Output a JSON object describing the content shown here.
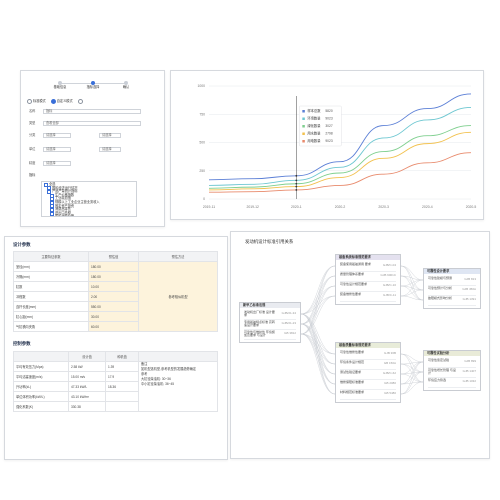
{
  "form_panel": {
    "steps": [
      {
        "label": "基础信息"
      },
      {
        "label": "指标选择"
      },
      {
        "label": "确认"
      }
    ],
    "radios": [
      {
        "label": "标准模式",
        "checked": false
      },
      {
        "label": "自定义模式",
        "checked": true
      },
      {
        "label": "",
        "checked": false
      }
    ],
    "fields": [
      {
        "label": "名称",
        "value": "指标"
      },
      {
        "label": "类型",
        "value": "查看全部"
      },
      {
        "label": "分类",
        "value": "请选择"
      },
      {
        "label": "",
        "value": "请选择"
      },
      {
        "label": "单位",
        "value": "请选择"
      },
      {
        "label": "",
        "value": "请选择"
      },
      {
        "label": "精度",
        "value": "请选择"
      }
    ],
    "tree_label": "指标",
    "tree": [
      "全选",
      "国民经济运行情况",
      "产品产量统计指标",
      "生产价格指数",
      "工业增加值",
      "规模以上工业企业主营业务收入",
      "固定资产投资",
      "消费品零售",
      "进出口总额",
      "居民消费价格",
      "其他"
    ]
  },
  "chart_data": {
    "type": "line",
    "x": [
      "2019-11",
      "2019-12",
      "2020-1",
      "2020-2",
      "2020-3",
      "2020-4",
      "2020-5"
    ],
    "ylim": [
      0,
      1000
    ],
    "yticks": [
      0,
      250,
      500,
      750,
      1000
    ],
    "series": [
      {
        "name": "样本总数",
        "value_label": "5820",
        "color": "#5b7fd6",
        "values": [
          170,
          180,
          205,
          330,
          650,
          800,
          930
        ]
      },
      {
        "name": "环境数量",
        "value_label": "9023",
        "color": "#6ec7d1",
        "values": [
          120,
          130,
          165,
          280,
          540,
          700,
          810
        ]
      },
      {
        "name": "绿化数量",
        "value_label": "3027",
        "color": "#7fcf8f",
        "values": [
          95,
          105,
          135,
          230,
          420,
          560,
          650
        ]
      },
      {
        "name": "用水数量",
        "value_label": "2798",
        "color": "#f2c14e",
        "values": [
          80,
          90,
          110,
          190,
          360,
          490,
          590
        ]
      },
      {
        "name": "用电数量",
        "value_label": "9023",
        "color": "#e88a6c",
        "values": [
          60,
          65,
          80,
          120,
          220,
          320,
          410
        ]
      }
    ],
    "tooltip_at": "2020-1"
  },
  "params_panel": {
    "design_title": "设计参数",
    "design_headers": [
      "主要特征参数",
      "预估值",
      "预估方法"
    ],
    "design_rows": [
      {
        "name": "室径(mm)",
        "value": "180.00"
      },
      {
        "name": "冷隔(mm)",
        "value": "180.00"
      },
      {
        "name": "缸数",
        "value": "10.00"
      },
      {
        "name": "冲程数",
        "value": "2.00"
      },
      {
        "name": "连杆长度(mm)",
        "value": "550.00"
      },
      {
        "name": "缸心距(mm)",
        "value": "30.00"
      },
      {
        "name": "气缸横向夹角",
        "value": "60.00"
      }
    ],
    "design_method": "参考相似机型",
    "control_title": "控制参数",
    "control_headers": [
      "",
      "设计值",
      "种机值"
    ],
    "control_rows": [
      {
        "name": "平均有效压力(Mpa)",
        "design": "2.58 kW",
        "machine": "1.39"
      },
      {
        "name": "平均活塞速度(m/s)",
        "design": "15.00 m/s",
        "machine": "17.9"
      },
      {
        "name": "升功率(kL)",
        "design": "47.33 kW/L",
        "machine": "18.36"
      },
      {
        "name": "单位体积功率(kW/L)",
        "design": "43.10 kW/m³",
        "machine": ""
      },
      {
        "name": "强化系数(K)",
        "design": "330.38",
        "machine": ""
      }
    ],
    "notes": [
      "备注",
      "如机型选机型,参考机型的发展趋势确定",
      "参考",
      "大缸径柴油机: 30~36",
      "中小缸径柴油机: 36~45"
    ]
  },
  "relation_panel": {
    "title": "发动机设计标准引用关系",
    "left_box": {
      "header": "新甲乙标准法规",
      "items": [
        {
          "text": "发动机出厂标准 设计要求",
          "code": "GJB/21-34"
        },
        {
          "text": "专用船舶特点标准 高转速设计要求",
          "code": "GJB/21-23"
        },
        {
          "text": "可靠性与维护性 环境施加及要求 与设计",
          "code": "GB 3812"
        }
      ]
    },
    "mid_top_box": {
      "header": "装备系统标准规范要求",
      "items": [
        {
          "text": "装备使用船舶通用 要求",
          "code": "GJB/C-04"
        },
        {
          "text": "质量管理体系要求",
          "code": "GJB 9001C"
        },
        {
          "text": "可靠性设计规范要求",
          "code": "GJB/C-10"
        },
        {
          "text": "装备维修性要求",
          "code": "GJB/C-11"
        }
      ]
    },
    "mid_bottom_box": {
      "header": "装备质量标准规范要求",
      "items": [
        {
          "text": "可靠性维修性要求",
          "code": "GJB 36B"
        },
        {
          "text": "环境条件设计规范",
          "code": "GB 150A"
        },
        {
          "text": "测试性验证要求",
          "code": "GJB/C-62"
        },
        {
          "text": "维修保障标准要求",
          "code": "GB 2080"
        },
        {
          "text": "材料规范标准要求",
          "code": "GB 5480"
        }
      ]
    },
    "right_top_box": {
      "header": "可靠性设计要求",
      "items": [
        {
          "text": "可靠性建模与预测",
          "code": "GJB 813"
        },
        {
          "text": "可靠性预计与分析",
          "code": "GJB 450A"
        },
        {
          "text": "故障模式影响分析",
          "code": "GJB 1391"
        }
      ]
    },
    "right_bottom_box": {
      "header": "可靠性试验分析",
      "items": [
        {
          "text": "可靠性鉴定试验",
          "code": "GJB 899"
        },
        {
          "text": "可靠性增长管理 与设计",
          "code": "GJB 1407"
        },
        {
          "text": "环境应力筛选",
          "code": "GJB 1032"
        }
      ]
    }
  }
}
